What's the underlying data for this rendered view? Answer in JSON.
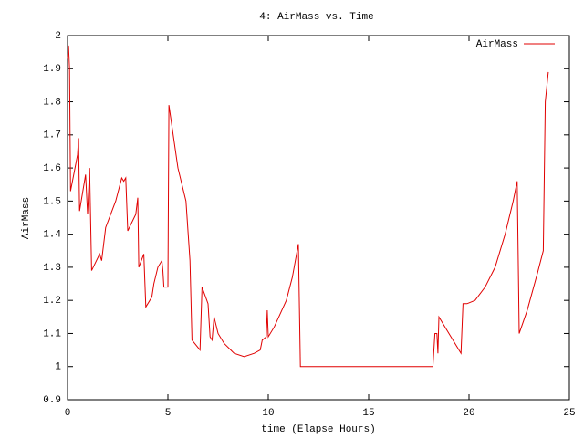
{
  "chart_data": {
    "type": "line",
    "title": "4: AirMass vs. Time",
    "x_label": "time (Elapse Hours)",
    "y_label": "AirMass",
    "legend": "top-right",
    "grid": false,
    "xlim": [
      0,
      25
    ],
    "xticks": [
      0,
      5,
      10,
      15,
      20,
      25
    ],
    "ylim": [
      0.9,
      2
    ],
    "yticks": [
      0.9,
      1,
      1.1,
      1.2,
      1.3,
      1.4,
      1.5,
      1.6,
      1.7,
      1.8,
      1.9,
      2
    ],
    "x": [
      0,
      0.05,
      0.1,
      0.15,
      0.5,
      0.55,
      0.6,
      0.9,
      1.0,
      1.1,
      1.2,
      1.6,
      1.7,
      1.9,
      2.4,
      2.7,
      2.8,
      2.9,
      3.0,
      3.4,
      3.5,
      3.55,
      3.8,
      3.9,
      4.2,
      4.3,
      4.5,
      4.6,
      4.7,
      4.75,
      4.8,
      5.0,
      5.05,
      5.5,
      5.9,
      6.1,
      6.2,
      6.6,
      6.7,
      7.0,
      7.1,
      7.2,
      7.3,
      7.5,
      7.8,
      8.3,
      8.8,
      9.3,
      9.6,
      9.7,
      9.9,
      9.95,
      10.0,
      10.3,
      10.9,
      11.2,
      11.5,
      11.6,
      18.2,
      18.3,
      18.4,
      18.45,
      18.5,
      18.8,
      19.2,
      19.6,
      19.7,
      19.9,
      20.3,
      20.8,
      21.3,
      21.8,
      22.2,
      22.4,
      22.5,
      22.9,
      23.4,
      23.7,
      23.8,
      23.95
    ],
    "series": [
      {
        "name": "AirMass",
        "color": "#e00000",
        "values": [
          1.93,
          1.97,
          1.9,
          1.53,
          1.64,
          1.69,
          1.47,
          1.58,
          1.46,
          1.6,
          1.29,
          1.34,
          1.32,
          1.42,
          1.5,
          1.57,
          1.56,
          1.57,
          1.41,
          1.46,
          1.51,
          1.3,
          1.34,
          1.18,
          1.21,
          1.25,
          1.3,
          1.31,
          1.32,
          1.29,
          1.24,
          1.24,
          1.79,
          1.6,
          1.5,
          1.32,
          1.08,
          1.05,
          1.24,
          1.19,
          1.09,
          1.08,
          1.15,
          1.1,
          1.07,
          1.04,
          1.03,
          1.04,
          1.05,
          1.08,
          1.09,
          1.17,
          1.09,
          1.12,
          1.2,
          1.27,
          1.37,
          1.0,
          1.0,
          1.1,
          1.1,
          1.04,
          1.15,
          1.12,
          1.08,
          1.04,
          1.19,
          1.19,
          1.2,
          1.24,
          1.3,
          1.4,
          1.5,
          1.56,
          1.1,
          1.17,
          1.28,
          1.35,
          1.8,
          1.89
        ]
      }
    ]
  }
}
